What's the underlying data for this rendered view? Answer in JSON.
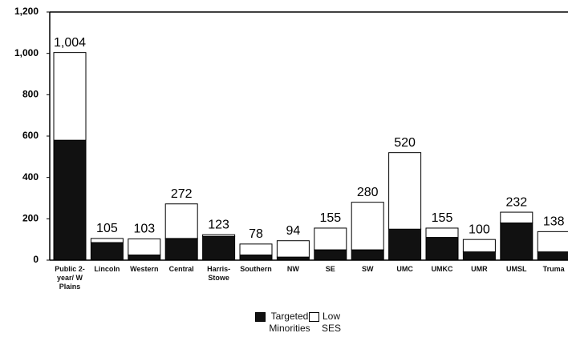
{
  "chart_data": {
    "type": "stacked_bar",
    "categories": [
      "Public 2-year/ W Plains",
      "Lincoln",
      "Western",
      "Central",
      "Harris-Stowe",
      "Southern",
      "NW",
      "SE",
      "SW",
      "UMC",
      "UMKC",
      "UMR",
      "UMSL",
      "Truma"
    ],
    "series": [
      {
        "name": "Targeted Minorities",
        "color": "#111111",
        "values": [
          580,
          85,
          25,
          105,
          115,
          25,
          15,
          50,
          50,
          150,
          110,
          40,
          180,
          40
        ]
      },
      {
        "name": "Low SES",
        "color": "#ffffff",
        "values": [
          424,
          20,
          78,
          167,
          8,
          53,
          79,
          105,
          230,
          370,
          45,
          60,
          52,
          98
        ]
      }
    ],
    "totals": [
      1004,
      105,
      103,
      272,
      123,
      78,
      94,
      155,
      280,
      520,
      155,
      100,
      232,
      138
    ],
    "total_labels": [
      "1,004",
      "105",
      "103",
      "272",
      "123",
      "78",
      "94",
      "155",
      "280",
      "520",
      "155",
      "100",
      "232",
      "138"
    ],
    "ylim": [
      0,
      1200
    ],
    "yticks": [
      0,
      200,
      400,
      600,
      800,
      {
        "value": 1000,
        "label": "1,000"
      },
      {
        "value": 1200,
        "label": "1,200"
      }
    ],
    "legend": "bottom"
  }
}
